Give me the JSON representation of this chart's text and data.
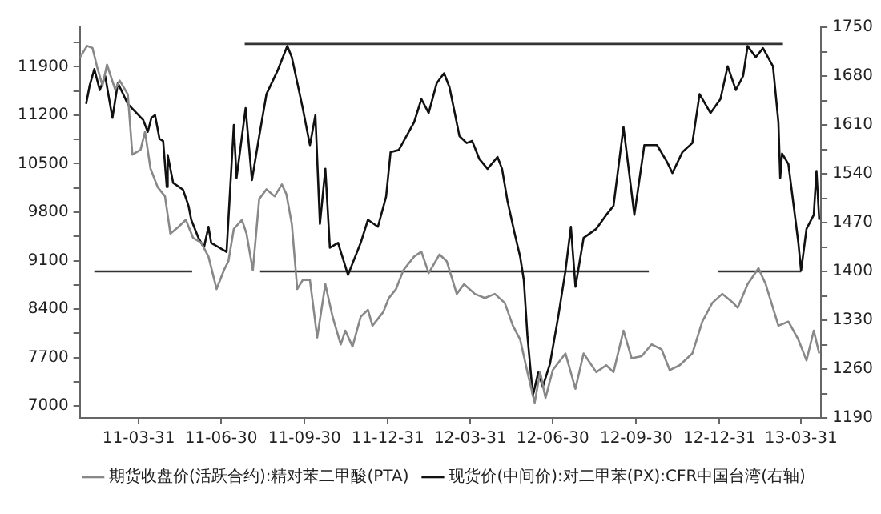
{
  "chart_data": {
    "type": "line",
    "legend": "bottom",
    "grid": false,
    "marker": "none",
    "xlim": [
      "2011-01-25",
      "2013-04-22"
    ],
    "xticks": [
      {
        "value": "2011-03-31",
        "label": "11-03-31"
      },
      {
        "value": "2011-06-30",
        "label": "11-06-30"
      },
      {
        "value": "2011-09-30",
        "label": "11-09-30"
      },
      {
        "value": "2011-12-31",
        "label": "11-12-31"
      },
      {
        "value": "2012-03-31",
        "label": "12-03-31"
      },
      {
        "value": "2012-06-30",
        "label": "12-06-30"
      },
      {
        "value": "2012-09-30",
        "label": "12-09-30"
      },
      {
        "value": "2012-12-31",
        "label": "12-12-31"
      },
      {
        "value": "2013-03-31",
        "label": "13-03-31"
      }
    ],
    "ylim": [
      6830,
      12470
    ],
    "yticks": [
      7000,
      {
        "value": 7350,
        "label": null
      },
      7700,
      {
        "value": 8050,
        "label": null
      },
      8400,
      {
        "value": 8750,
        "label": null
      },
      9100,
      {
        "value": 9450,
        "label": null
      },
      9800,
      {
        "value": 10150,
        "label": null
      },
      10500,
      {
        "value": 10850,
        "label": null
      },
      11200,
      {
        "value": 11550,
        "label": null
      },
      11900,
      {
        "value": 12250,
        "label": null
      }
    ],
    "y2lim": [
      1190,
      1750
    ],
    "y2ticks": [
      1190,
      {
        "value": 1225,
        "label": null
      },
      1260,
      {
        "value": 1295,
        "label": null
      },
      1330,
      {
        "value": 1365,
        "label": null
      },
      1400,
      {
        "value": 1435,
        "label": null
      },
      1470,
      {
        "value": 1505,
        "label": null
      },
      1540,
      {
        "value": 1575,
        "label": null
      },
      1610,
      {
        "value": 1645,
        "label": null
      },
      1680,
      {
        "value": 1715,
        "label": null
      },
      1750
    ],
    "series": [
      {
        "name": "期货收盘价(活跃合约):精对苯二甲酸(PTA)",
        "color": "#888888",
        "x": [
          "2011-01-25",
          "2011-02-02",
          "2011-02-08",
          "2011-02-13",
          "2011-02-19",
          "2011-02-24",
          "2011-03-05",
          "2011-03-10",
          "2011-03-19",
          "2011-03-24",
          "2011-04-02",
          "2011-04-07",
          "2011-04-13",
          "2011-04-21",
          "2011-04-29",
          "2011-05-05",
          "2011-05-14",
          "2011-05-22",
          "2011-05-30",
          "2011-06-08",
          "2011-06-16",
          "2011-06-25",
          "2011-07-03",
          "2011-07-08",
          "2011-07-14",
          "2011-07-23",
          "2011-07-28",
          "2011-08-04",
          "2011-08-11",
          "2011-08-19",
          "2011-08-28",
          "2011-09-05",
          "2011-09-10",
          "2011-09-16",
          "2011-09-22",
          "2011-09-28",
          "2011-10-06",
          "2011-10-14",
          "2011-10-23",
          "2011-10-31",
          "2011-11-09",
          "2011-11-14",
          "2011-11-22",
          "2011-12-01",
          "2011-12-09",
          "2011-12-14",
          "2011-12-26",
          "2012-01-01",
          "2012-01-09",
          "2012-01-17",
          "2012-01-29",
          "2012-02-06",
          "2012-02-14",
          "2012-02-26",
          "2012-03-05",
          "2012-03-16",
          "2012-03-24",
          "2012-04-05",
          "2012-04-16",
          "2012-04-27",
          "2012-05-08",
          "2012-05-17",
          "2012-05-25",
          "2012-06-02",
          "2012-06-10",
          "2012-06-16",
          "2012-06-22",
          "2012-06-30",
          "2012-07-14",
          "2012-07-25",
          "2012-08-03",
          "2012-08-17",
          "2012-08-28",
          "2012-09-05",
          "2012-09-16",
          "2012-09-25",
          "2012-10-06",
          "2012-10-17",
          "2012-10-28",
          "2012-11-06",
          "2012-11-17",
          "2012-12-01",
          "2012-12-12",
          "2012-12-23",
          "2013-01-03",
          "2013-01-15",
          "2013-01-20",
          "2013-01-31",
          "2013-02-12",
          "2013-02-20",
          "2013-03-06",
          "2013-03-17",
          "2013-03-28",
          "2013-04-06",
          "2013-04-14",
          "2013-04-20"
        ],
        "values": [
          12030,
          12200,
          12170,
          11900,
          11630,
          11930,
          11570,
          11700,
          11500,
          10630,
          10700,
          10960,
          10430,
          10160,
          10030,
          9490,
          9590,
          9690,
          9430,
          9360,
          9160,
          8690,
          8960,
          9090,
          9560,
          9690,
          9490,
          8960,
          9990,
          10130,
          10030,
          10200,
          10060,
          9630,
          8690,
          8820,
          8820,
          7990,
          8760,
          8290,
          7890,
          8090,
          7860,
          8290,
          8390,
          8160,
          8360,
          8560,
          8690,
          8960,
          9160,
          9230,
          8920,
          9190,
          9090,
          8620,
          8760,
          8620,
          8560,
          8620,
          8490,
          8160,
          7960,
          7490,
          7050,
          7490,
          7120,
          7520,
          7760,
          7250,
          7760,
          7490,
          7590,
          7490,
          8090,
          7690,
          7720,
          7890,
          7820,
          7520,
          7590,
          7760,
          8220,
          8490,
          8620,
          8490,
          8420,
          8760,
          8990,
          8760,
          8160,
          8220,
          7960,
          7660,
          8090,
          7760
        ]
      },
      {
        "name": "现货价(中间价):对二甲苯(PX):CFR中国台湾(右轴)",
        "color": "#111111",
        "axis": "y2",
        "x": [
          "2011-02-01",
          "2011-02-05",
          "2011-02-10",
          "2011-02-16",
          "2011-02-22",
          "2011-03-02",
          "2011-03-08",
          "2011-03-19",
          "2011-04-05",
          "2011-04-10",
          "2011-04-14",
          "2011-04-18",
          "2011-04-23",
          "2011-04-27",
          "2011-05-01",
          "2011-05-02",
          "2011-05-08",
          "2011-05-19",
          "2011-05-25",
          "2011-05-28",
          "2011-06-05",
          "2011-06-11",
          "2011-06-16",
          "2011-06-19",
          "2011-07-06",
          "2011-07-14",
          "2011-07-17",
          "2011-07-23",
          "2011-07-27",
          "2011-08-03",
          "2011-08-11",
          "2011-08-19",
          "2011-08-31",
          "2011-09-11",
          "2011-09-16",
          "2011-09-28",
          "2011-10-06",
          "2011-10-12",
          "2011-10-17",
          "2011-10-23",
          "2011-10-28",
          "2011-11-06",
          "2011-11-17",
          "2011-12-01",
          "2011-12-09",
          "2011-12-20",
          "2011-12-29",
          "2012-01-03",
          "2012-01-12",
          "2012-01-29",
          "2012-02-06",
          "2012-02-14",
          "2012-02-23",
          "2012-03-02",
          "2012-03-08",
          "2012-03-19",
          "2012-03-27",
          "2012-04-02",
          "2012-04-10",
          "2012-04-19",
          "2012-04-30",
          "2012-05-05",
          "2012-05-11",
          "2012-05-19",
          "2012-05-25",
          "2012-05-29",
          "2012-06-02",
          "2012-06-08",
          "2012-06-14",
          "2012-06-19",
          "2012-06-27",
          "2012-07-06",
          "2012-07-14",
          "2012-07-20",
          "2012-07-25",
          "2012-08-03",
          "2012-08-17",
          "2012-08-28",
          "2012-09-05",
          "2012-09-16",
          "2012-09-28",
          "2012-10-09",
          "2012-10-23",
          "2012-11-03",
          "2012-11-09",
          "2012-11-20",
          "2012-12-01",
          "2012-12-09",
          "2012-12-21",
          "2013-01-01",
          "2013-01-09",
          "2013-01-18",
          "2013-01-26",
          "2013-01-31",
          "2013-02-09",
          "2013-02-17",
          "2013-02-28",
          "2013-03-06",
          "2013-03-08",
          "2013-03-10",
          "2013-03-17",
          "2013-03-28",
          "2013-03-31",
          "2013-04-06",
          "2013-04-14",
          "2013-04-17",
          "2013-04-20"
        ],
        "values": [
          1640,
          1667,
          1690,
          1660,
          1680,
          1620,
          1670,
          1640,
          1617,
          1600,
          1620,
          1624,
          1590,
          1587,
          1521,
          1567,
          1527,
          1517,
          1494,
          1474,
          1448,
          1434,
          1464,
          1441,
          1428,
          1610,
          1534,
          1594,
          1634,
          1531,
          1594,
          1654,
          1687,
          1723,
          1707,
          1634,
          1581,
          1624,
          1468,
          1547,
          1434,
          1441,
          1395,
          1441,
          1474,
          1464,
          1507,
          1571,
          1574,
          1614,
          1647,
          1627,
          1670,
          1684,
          1664,
          1594,
          1584,
          1587,
          1561,
          1547,
          1564,
          1547,
          1501,
          1454,
          1421,
          1388,
          1308,
          1222,
          1255,
          1235,
          1268,
          1335,
          1401,
          1464,
          1378,
          1448,
          1461,
          1481,
          1494,
          1607,
          1481,
          1581,
          1581,
          1557,
          1541,
          1571,
          1584,
          1654,
          1627,
          1647,
          1694,
          1660,
          1680,
          1723,
          1707,
          1720,
          1694,
          1614,
          1534,
          1569,
          1554,
          1441,
          1401,
          1461,
          1481,
          1544,
          1474
        ]
      },
      {
        "type": "line",
        "color": "#333333",
        "axis": "y2",
        "x": [
          "2011-02-10",
          "2011-05-29"
        ],
        "values": [
          1400,
          1400
        ]
      },
      {
        "type": "line",
        "color": "#333333",
        "axis": "y2",
        "x": [
          "2011-08-12",
          "2012-10-14"
        ],
        "values": [
          1400,
          1400
        ]
      },
      {
        "type": "line",
        "color": "#333333",
        "axis": "y2",
        "x": [
          "2012-12-29",
          "2013-03-31"
        ],
        "values": [
          1400,
          1400
        ]
      },
      {
        "type": "line",
        "color": "#333333",
        "axis": "y2",
        "x": [
          "2011-07-26",
          "2013-03-11"
        ],
        "values": [
          1726,
          1726
        ]
      }
    ]
  }
}
